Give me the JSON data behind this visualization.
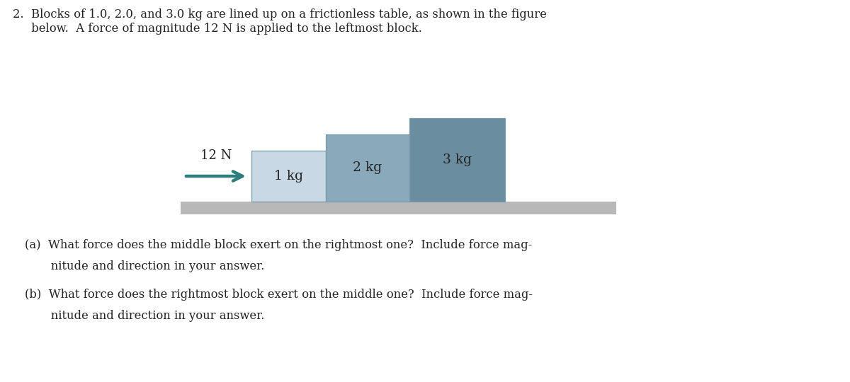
{
  "bg_color": "#ffffff",
  "problem_text_line1": "2.  Blocks of 1.0, 2.0, and 3.0 kg are lined up on a frictionless table, as shown in the figure",
  "problem_text_line2": "     below.  A force of magnitude 12 N is applied to the leftmost block.",
  "part_a_line1": "(a)  What force does the middle block exert on the rightmost one?  Include force mag-",
  "part_a_line2": "       nitude and direction in your answer.",
  "part_b_line1": "(b)  What force does the rightmost block exert on the middle one?  Include force mag-",
  "part_b_line2": "       nitude and direction in your answer.",
  "arrow_color": "#2e7d7d",
  "arrow_label": "12 N",
  "block1_color": "#c8d8e4",
  "block2_color": "#8aaabb",
  "block3_color": "#6a8ea0",
  "table_color": "#b8b8b8",
  "block1_label": "1 kg",
  "block2_label": "2 kg",
  "block3_label": "3 kg",
  "text_color": "#222222",
  "font_family": "serif",
  "xlim": [
    0,
    12
  ],
  "ylim": [
    0,
    5.4
  ]
}
